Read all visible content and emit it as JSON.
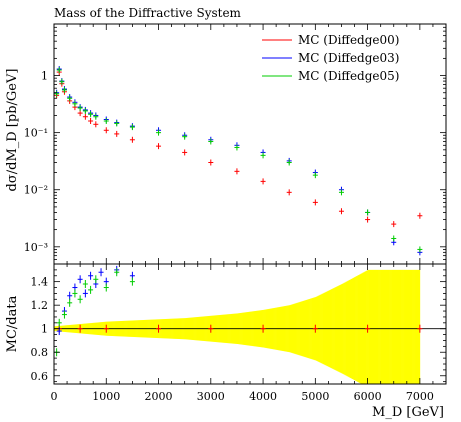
{
  "chart_data": [
    {
      "type": "scatter",
      "title": "Mass of the Diffractive System",
      "ylabel": "dσ/dM_D [pb/GeV]",
      "yscale": "log",
      "ylim": [
        0.0005,
        8
      ],
      "xlim": [
        0,
        7500
      ],
      "ytick_labels": [
        "1",
        "10⁻¹",
        "10⁻²",
        "10⁻³"
      ],
      "ytick_values": [
        1,
        0.1,
        0.01,
        0.001
      ],
      "legend_position": "top-right",
      "grid": false,
      "series": [
        {
          "name": "MC (Diffedge00)",
          "color": "#ff0000",
          "x": [
            50,
            100,
            150,
            200,
            300,
            400,
            500,
            600,
            700,
            800,
            1000,
            1200,
            1500,
            2000,
            2500,
            3000,
            3500,
            4000,
            4500,
            5000,
            5500,
            6000,
            6500,
            7000
          ],
          "y": [
            0.45,
            1.15,
            0.72,
            0.52,
            0.36,
            0.28,
            0.22,
            0.19,
            0.16,
            0.14,
            0.11,
            0.095,
            0.075,
            0.058,
            0.045,
            0.03,
            0.021,
            0.014,
            0.009,
            0.006,
            0.0042,
            0.003,
            0.0025,
            0.0035
          ]
        },
        {
          "name": "MC (Diffedge03)",
          "color": "#0000ff",
          "x": [
            50,
            100,
            150,
            200,
            300,
            400,
            500,
            600,
            700,
            800,
            1000,
            1200,
            1500,
            2000,
            2500,
            3000,
            3500,
            4000,
            4500,
            5000,
            5500,
            6000,
            6500,
            7000
          ],
          "y": [
            0.5,
            1.3,
            0.8,
            0.58,
            0.42,
            0.34,
            0.28,
            0.25,
            0.22,
            0.2,
            0.17,
            0.15,
            0.13,
            0.11,
            0.09,
            0.075,
            0.06,
            0.045,
            0.032,
            0.02,
            0.01,
            0.004,
            0.0012,
            0.0008
          ]
        },
        {
          "name": "MC (Diffedge05)",
          "color": "#00cc00",
          "x": [
            50,
            100,
            150,
            200,
            300,
            400,
            500,
            600,
            700,
            800,
            1000,
            1200,
            1500,
            2000,
            2500,
            3000,
            3500,
            4000,
            4500,
            5000,
            5500,
            6000,
            6500,
            7000
          ],
          "y": [
            0.48,
            1.25,
            0.78,
            0.56,
            0.4,
            0.32,
            0.27,
            0.24,
            0.21,
            0.19,
            0.16,
            0.145,
            0.125,
            0.1,
            0.085,
            0.07,
            0.055,
            0.04,
            0.03,
            0.018,
            0.009,
            0.004,
            0.0014,
            0.0009
          ]
        }
      ]
    },
    {
      "type": "scatter",
      "ylabel": "MC/data",
      "xlabel": "M_D [GeV]",
      "xlim": [
        0,
        7500
      ],
      "ylim": [
        0.53,
        1.55
      ],
      "xtick_labels": [
        "0",
        "1000",
        "2000",
        "3000",
        "4000",
        "5000",
        "6000",
        "7000"
      ],
      "xtick_values": [
        0,
        1000,
        2000,
        3000,
        4000,
        5000,
        6000,
        7000
      ],
      "ytick_labels": [
        "0.6",
        "0.8",
        "1",
        "1.2",
        "1.4"
      ],
      "ytick_values": [
        0.6,
        0.8,
        1.0,
        1.2,
        1.4
      ],
      "band": {
        "color": "#ffff00",
        "x": [
          0,
          500,
          1000,
          1500,
          2000,
          2500,
          3000,
          3500,
          4000,
          4500,
          5000,
          5500,
          6000,
          6500,
          7000
        ],
        "half_width": [
          0.02,
          0.04,
          0.06,
          0.07,
          0.08,
          0.09,
          0.11,
          0.13,
          0.16,
          0.2,
          0.27,
          0.38,
          0.5,
          0.5,
          0.5
        ]
      },
      "reference_line": 1.0,
      "series": [
        {
          "name": "MC (Diffedge00)",
          "color": "#ff0000",
          "x": [
            100,
            500,
            1000,
            2000,
            3000,
            4000,
            5000,
            6000,
            7000
          ],
          "y": [
            1.0,
            1.0,
            1.0,
            1.0,
            1.0,
            1.0,
            1.0,
            1.0,
            1.0
          ]
        },
        {
          "name": "MC (Diffedge03)",
          "color": "#0000ff",
          "x": [
            100,
            200,
            300,
            400,
            500,
            600,
            700,
            800,
            900,
            1000,
            1200,
            1500
          ],
          "y": [
            0.98,
            1.15,
            1.28,
            1.35,
            1.42,
            1.3,
            1.45,
            1.38,
            1.48,
            1.4,
            1.5,
            1.45
          ]
        },
        {
          "name": "MC (Diffedge05)",
          "color": "#00cc00",
          "x": [
            50,
            100,
            200,
            300,
            400,
            500,
            600,
            700,
            800,
            1000,
            1200,
            1500
          ],
          "y": [
            0.8,
            1.05,
            1.12,
            1.22,
            1.3,
            1.25,
            1.38,
            1.33,
            1.42,
            1.35,
            1.48,
            1.4
          ]
        }
      ]
    }
  ]
}
